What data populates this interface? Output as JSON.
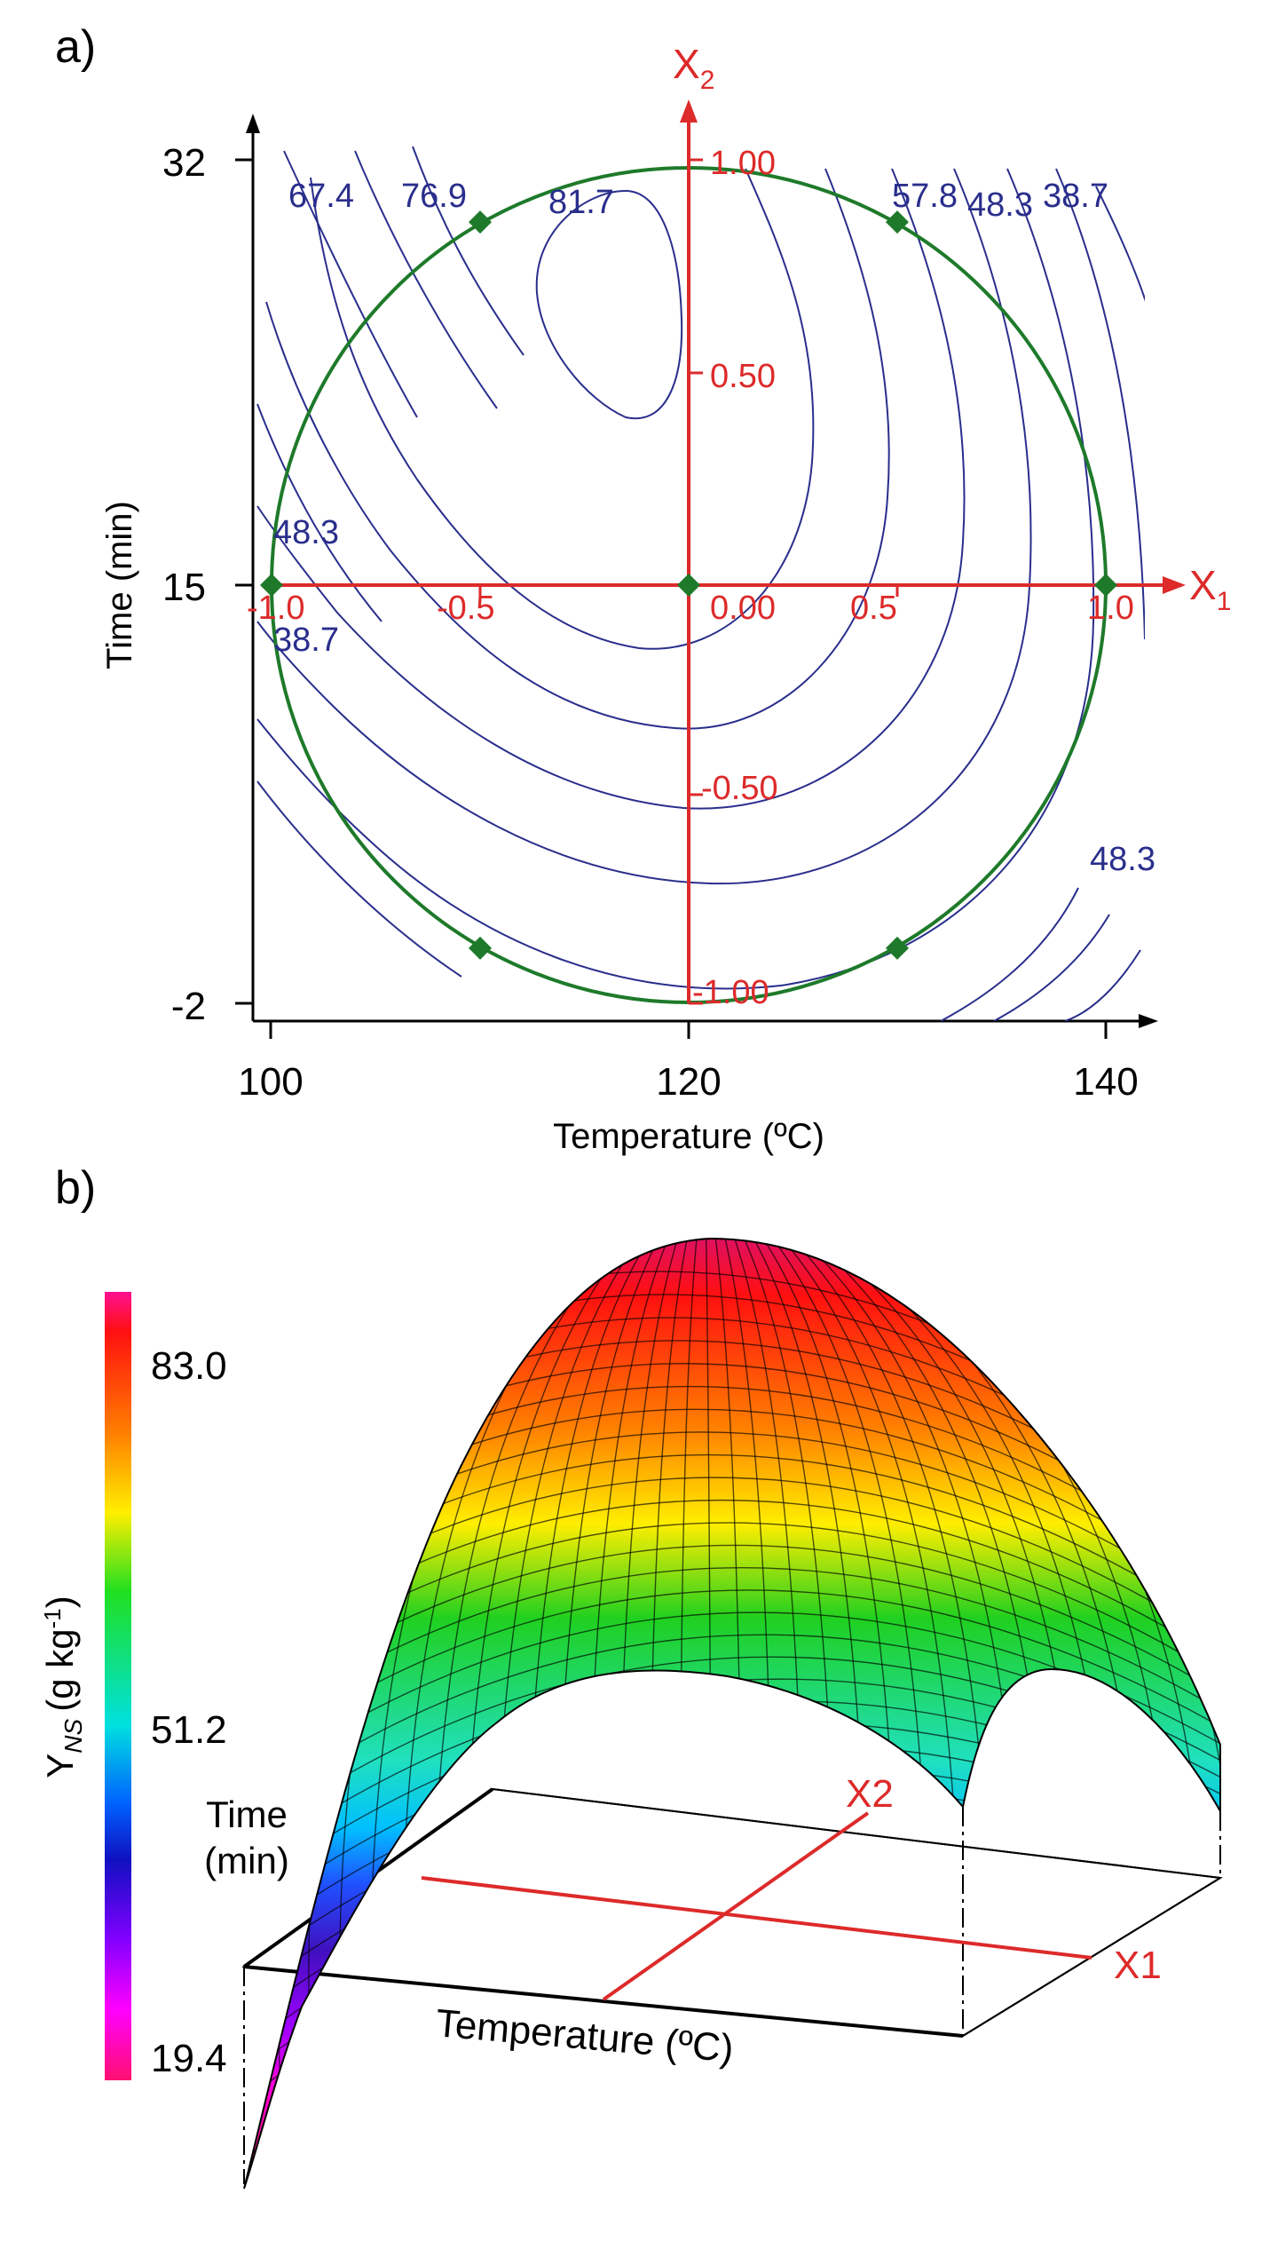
{
  "chart_data": [
    {
      "panel_label": "a)",
      "type": "contour",
      "xlabel": "Temperature (ºC)",
      "ylabel": "Time (min)",
      "x_ticks": [
        "100",
        "120",
        "140"
      ],
      "y_ticks": [
        "32",
        "15",
        "-2"
      ],
      "x_range": [
        100,
        140
      ],
      "y_range": [
        -2,
        32
      ],
      "coded_axes": {
        "x_name": "X",
        "x_sub": "1",
        "y_name": "X",
        "y_sub": "2",
        "x_ticks": [
          "-1.0",
          "-0.5",
          "0.00",
          "0.5",
          "1.0"
        ],
        "y_ticks": [
          "1.00",
          "0.50",
          "-0.50",
          "-1.00"
        ]
      },
      "contour_levels": [
        38.7,
        48.3,
        57.8,
        67.4,
        76.9,
        81.7
      ],
      "contour_labels": [
        "67.4",
        "76.9",
        "81.7",
        "57.8",
        "48.3",
        "38.7",
        "48.3",
        "38.7",
        "48.3"
      ],
      "design_points": [
        {
          "x1": -1.0,
          "x2": 0.0
        },
        {
          "x1": 1.0,
          "x2": 0.0
        },
        {
          "x1": 0.0,
          "x2": 0.0
        },
        {
          "x1": -0.5,
          "x2": 0.87
        },
        {
          "x1": 0.5,
          "x2": 0.87
        },
        {
          "x1": -0.5,
          "x2": -0.87
        },
        {
          "x1": 0.5,
          "x2": -0.87
        }
      ],
      "colors": {
        "contour": "#2a2e8c",
        "coded_axis": "#dd2a2a",
        "design_circle": "#1e7a2a",
        "axis": "#000000"
      }
    },
    {
      "panel_label": "b)",
      "type": "surface",
      "zlabel_main": "Y",
      "zlabel_sub": "NS",
      "zlabel_unit": "(g kg",
      "zlabel_sup": "-1",
      "zlabel_close": ")",
      "colorbar_ticks": [
        "83.0",
        "51.2",
        "19.4"
      ],
      "colorbar_range": [
        19.4,
        86.0
      ],
      "xlabel": "Temperature (ºC)",
      "ylabel_line1": "Time",
      "ylabel_line2": "(min)",
      "coded_labels": [
        "X2",
        "X1"
      ],
      "colors": {
        "coded_axis": "#dd2a2a"
      }
    }
  ]
}
